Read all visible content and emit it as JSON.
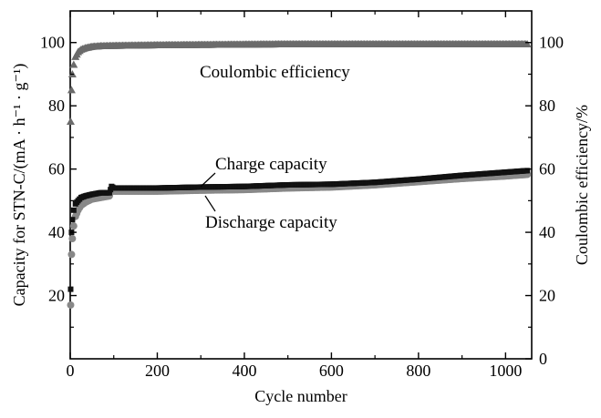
{
  "chart_data": {
    "type": "scatter",
    "xlabel": "Cycle number",
    "ylabel_left": "Capacity for STN-C/(mA · h⁻¹ · g⁻¹)",
    "ylabel_right": "Coulombic efficiency/%",
    "xlim": [
      0,
      1060
    ],
    "ylim_left": [
      0,
      110
    ],
    "ylim_right": [
      0,
      110
    ],
    "x_ticks": [
      0,
      200,
      400,
      600,
      800,
      1000
    ],
    "y_ticks_left": [
      20,
      40,
      60,
      80,
      100
    ],
    "y_ticks_right": [
      0,
      20,
      40,
      60,
      80,
      100
    ],
    "annotations": [
      {
        "text": "Coulombic efficiency"
      },
      {
        "text": "Charge capacity"
      },
      {
        "text": "Discharge capacity"
      }
    ],
    "series": [
      {
        "name": "Charge capacity",
        "axis": "left",
        "color": "#111111",
        "marker": "square",
        "x": [
          1,
          3,
          5,
          8,
          12,
          18,
          25,
          35,
          50,
          70,
          90,
          95,
          100,
          150,
          200,
          300,
          400,
          500,
          600,
          700,
          800,
          900,
          1000,
          1050
        ],
        "y": [
          22,
          40,
          44,
          47,
          49,
          50,
          51,
          51.5,
          52,
          52.5,
          52.5,
          54.5,
          54,
          54,
          54,
          54.3,
          54.5,
          55,
          55.2,
          55.8,
          56.8,
          58,
          59,
          59.5
        ]
      },
      {
        "name": "Discharge capacity",
        "axis": "left",
        "color": "#888888",
        "marker": "circle",
        "x": [
          1,
          3,
          5,
          8,
          12,
          18,
          25,
          35,
          50,
          70,
          90,
          95,
          100,
          150,
          200,
          300,
          400,
          500,
          600,
          700,
          800,
          900,
          1000,
          1050
        ],
        "y": [
          17,
          33,
          38,
          42,
          45,
          47,
          48.5,
          49.5,
          50.5,
          51,
          51.5,
          53.5,
          53,
          53,
          53,
          53.3,
          53.5,
          54,
          54.3,
          55,
          56,
          57,
          57.8,
          58.3
        ]
      },
      {
        "name": "Coulombic efficiency",
        "axis": "right",
        "color": "#6b6b6b",
        "marker": "triangle",
        "x": [
          1,
          3,
          5,
          8,
          12,
          18,
          25,
          35,
          50,
          70,
          100,
          150,
          200,
          300,
          400,
          500,
          600,
          700,
          800,
          900,
          1000,
          1050
        ],
        "y": [
          75,
          85,
          90,
          93,
          95.5,
          97,
          97.8,
          98.3,
          98.7,
          98.9,
          99,
          99.1,
          99.2,
          99.3,
          99.4,
          99.5,
          99.5,
          99.5,
          99.5,
          99.5,
          99.5,
          99.5
        ]
      }
    ]
  }
}
